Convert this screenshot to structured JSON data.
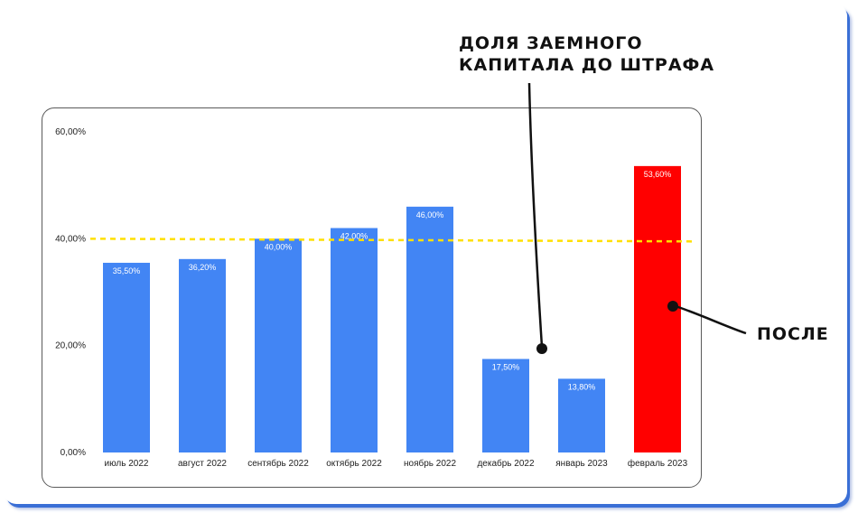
{
  "chart_data": {
    "type": "bar",
    "categories": [
      "июль 2022",
      "август 2022",
      "сентябрь 2022",
      "октябрь 2022",
      "ноябрь 2022",
      "декабрь 2022",
      "январь 2023",
      "февраль 2023"
    ],
    "values": [
      35.5,
      36.2,
      40.0,
      42.0,
      46.0,
      17.5,
      13.8,
      53.6
    ],
    "data_labels": [
      "35,50%",
      "36,20%",
      "40,00%",
      "42,00%",
      "46,00%",
      "17,50%",
      "13,80%",
      "53,60%"
    ],
    "ylim": [
      0,
      60
    ],
    "yticks": [
      0,
      20,
      40,
      60
    ],
    "ytick_labels": [
      "0,00%",
      "20,00%",
      "40,00%",
      "60,00%"
    ],
    "bar_color": "#4285f4",
    "highlight_color": "#ff0000",
    "highlight_index": 7,
    "reference_line": {
      "value": 40.0,
      "color": "#ffe000",
      "style": "dashed"
    },
    "grid": false
  },
  "annotations": {
    "threshold_label": "ДОЛЯ ЗАЕМНОГО\nКАПИТАЛА ДО ШТРАФА",
    "after_label": "ПОСЛЕ"
  }
}
